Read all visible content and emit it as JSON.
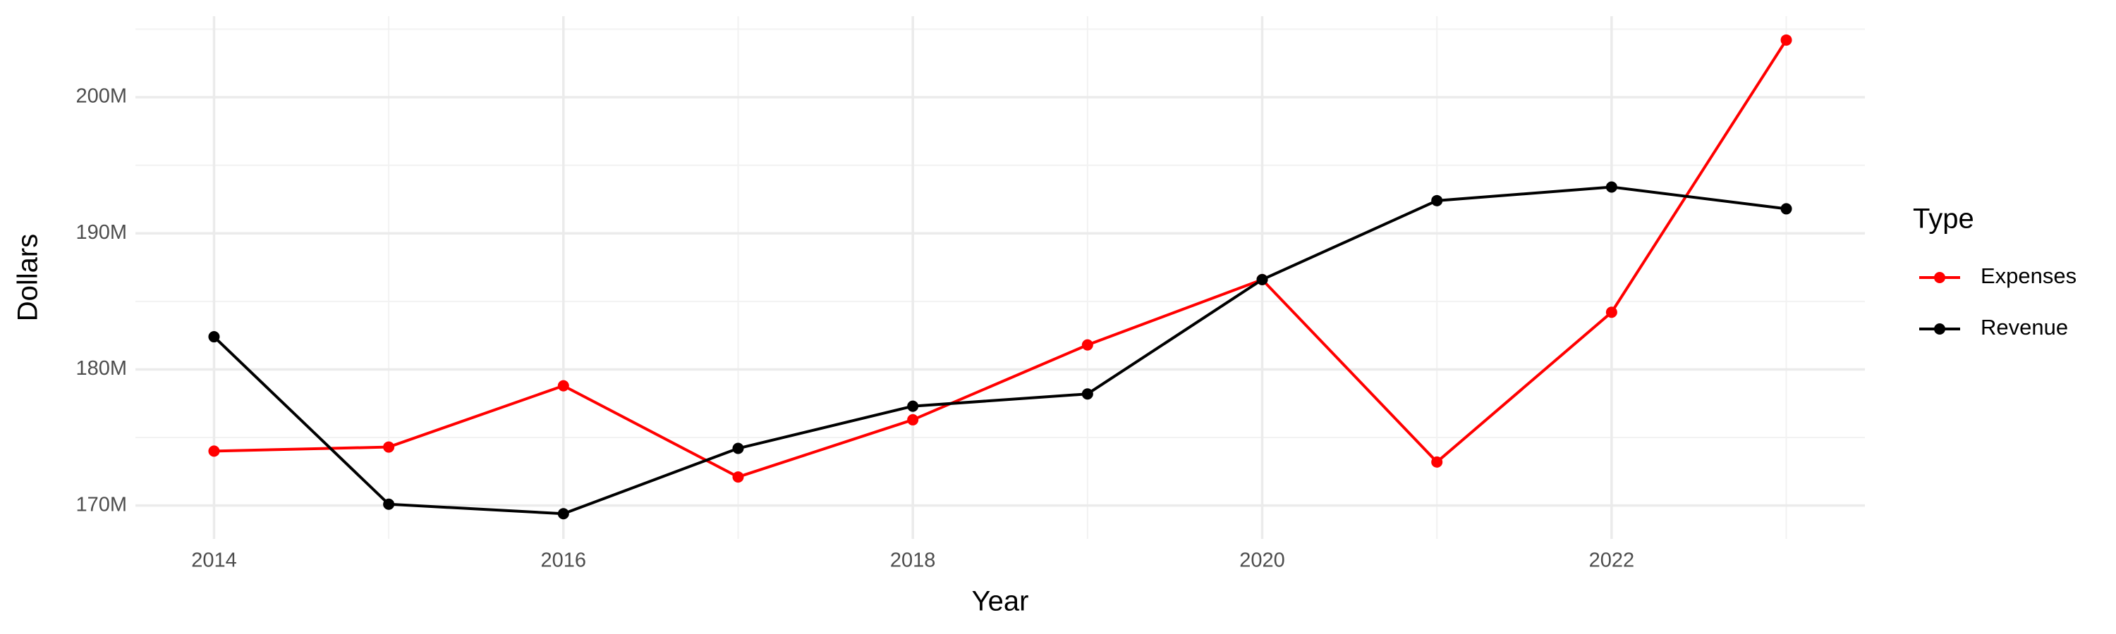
{
  "chart_data": {
    "type": "line",
    "x_label": "Year",
    "y_label": "Dollars",
    "x": [
      2014,
      2015,
      2016,
      2017,
      2018,
      2019,
      2020,
      2021,
      2022,
      2023
    ],
    "series": [
      {
        "name": "Expenses",
        "color": "#ff0000",
        "values": [
          174000000,
          174300000,
          178800000,
          172100000,
          176300000,
          181800000,
          186600000,
          173200000,
          184200000,
          204200000
        ]
      },
      {
        "name": "Revenue",
        "color": "#000000",
        "values": [
          182400000,
          170100000,
          169400000,
          174200000,
          177300000,
          178200000,
          186600000,
          192400000,
          193400000,
          191800000
        ]
      }
    ],
    "xlim": [
      2013.55,
      2023.45
    ],
    "xticks": [
      2014,
      2016,
      2018,
      2020,
      2022
    ],
    "ylim": [
      167550000,
      205950000
    ],
    "yticks": [
      {
        "value": 170000000,
        "label": "170M"
      },
      {
        "value": 180000000,
        "label": "180M"
      },
      {
        "value": 190000000,
        "label": "190M"
      },
      {
        "value": 200000000,
        "label": "200M"
      }
    ],
    "grid": true,
    "legend_title": "Type",
    "legend_position": "right"
  }
}
